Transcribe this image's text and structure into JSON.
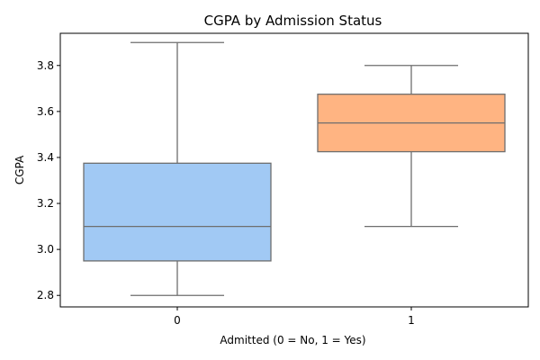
{
  "chart_data": {
    "type": "box",
    "title": "CGPA by Admission Status",
    "xlabel": "Admitted (0 = No, 1 = Yes)",
    "ylabel": "CGPA",
    "ylim": [
      2.75,
      3.94
    ],
    "yticks": [
      2.8,
      3.0,
      3.2,
      3.4,
      3.6,
      3.8
    ],
    "ytick_labels": [
      "2.8",
      "3.0",
      "3.2",
      "3.4",
      "3.6",
      "3.8"
    ],
    "categories": [
      "0",
      "1"
    ],
    "boxes": [
      {
        "category": "0",
        "whisker_low": 2.8,
        "q1": 2.95,
        "median": 3.1,
        "q3": 3.375,
        "whisker_high": 3.9,
        "color": "#a1c9f4"
      },
      {
        "category": "1",
        "whisker_low": 3.1,
        "q1": 3.425,
        "median": 3.55,
        "q3": 3.675,
        "whisker_high": 3.8,
        "color": "#ffb482"
      }
    ],
    "grid": false,
    "legend": "none",
    "line_color": "#6e6e6e"
  }
}
